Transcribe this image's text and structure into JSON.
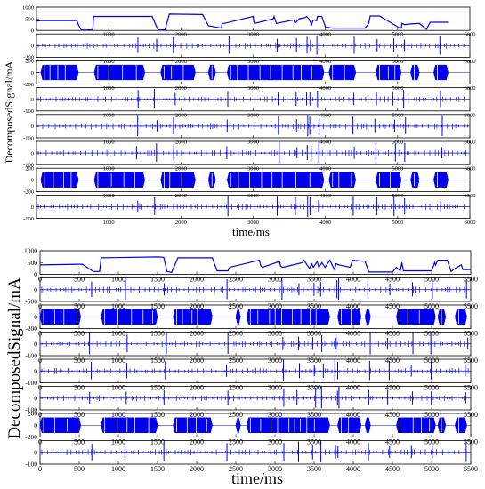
{
  "colors": {
    "signal": "#0000ee",
    "axis": "#000000"
  },
  "chart_data": [
    {
      "type": "line",
      "xlabel": "time/ms",
      "ylabel": "DecomposedSignal/mA",
      "xlim": [
        0,
        6000
      ],
      "x_ticks": [
        "1000",
        "2000",
        "3000",
        "4000",
        "5000",
        "6000"
      ],
      "rows": [
        {
          "ylim": [
            0,
            1000
          ],
          "y_ticks": [
            "1000",
            "500",
            "0"
          ],
          "series": {
            "x": [
              0,
              70,
              560,
              580,
              620,
              700,
              780,
              790,
              1600,
              1680,
              1700,
              1720,
              1780,
              1840,
              2300,
              2380,
              2560,
              2570,
              2600,
              3000,
              3010,
              3020,
              3280,
              3290,
              3320,
              3560,
              3580,
              3640,
              3720,
              3740,
              3770,
              3810,
              3830,
              3880,
              3890,
              3950,
              4000,
              4100,
              4150,
              4200,
              4550,
              4600,
              4620,
              4700,
              4750,
              5020,
              5050,
              5060,
              5100,
              5180,
              5300,
              5400,
              5450,
              5700
            ],
            "y": [
              400,
              420,
              420,
              250,
              20,
              20,
              30,
              600,
              600,
              30,
              20,
              20,
              30,
              700,
              680,
              200,
              100,
              300,
              300,
              600,
              350,
              300,
              500,
              600,
              300,
              450,
              300,
              500,
              550,
              600,
              500,
              250,
              450,
              420,
              600,
              600,
              150,
              100,
              100,
              100,
              100,
              300,
              620,
              620,
              620,
              120,
              100,
              300,
              250,
              280,
              300,
              50,
              350,
              350
            ]
          }
        },
        {
          "ylim": [
            -200,
            200
          ],
          "y_ticks": [
            "0",
            "-200"
          ],
          "kind": "sparse"
        },
        {
          "ylim": [
            -200,
            200
          ],
          "y_ticks": [
            "200",
            "0",
            "-200"
          ],
          "kind": "dense"
        },
        {
          "ylim": [
            -100,
            100
          ],
          "y_ticks": [
            "0",
            "-100"
          ],
          "kind": "sparse"
        },
        {
          "ylim": [
            -100,
            100
          ],
          "y_ticks": [
            "0",
            "-100"
          ],
          "kind": "sparse"
        },
        {
          "ylim": [
            -100,
            100
          ],
          "y_ticks": [
            "0",
            "-100"
          ],
          "kind": "sparse"
        },
        {
          "ylim": [
            -200,
            200
          ],
          "y_ticks": [
            "200",
            "0",
            "-200"
          ],
          "kind": "dense"
        },
        {
          "ylim": [
            -100,
            100
          ],
          "y_ticks": [
            "0",
            "-100"
          ],
          "kind": "sparse"
        }
      ],
      "dense_segments": [
        [
          60,
          580
        ],
        [
          800,
          1500
        ],
        [
          1720,
          2200
        ],
        [
          2380,
          2480
        ],
        [
          2640,
          3980
        ],
        [
          4050,
          4420
        ],
        [
          4700,
          5050
        ],
        [
          5180,
          5300
        ],
        [
          5500,
          5700
        ]
      ],
      "spikes": [
        1400,
        1650,
        1900,
        2650,
        3350,
        3600,
        3750,
        3800,
        3900,
        4400,
        4700,
        4950,
        5100,
        5600
      ]
    },
    {
      "type": "line",
      "xlabel": "time/ms",
      "ylabel": "DecomposedSignal/mA",
      "xlim": [
        0,
        5500
      ],
      "x_ticks": [
        "0",
        "500",
        "1000",
        "1500",
        "2000",
        "2500",
        "3000",
        "3500",
        "4000",
        "4500",
        "5000",
        "5500"
      ],
      "rows": [
        {
          "ylim": [
            0,
            1000
          ],
          "y_ticks": [
            "1000",
            "500",
            "0"
          ],
          "series": {
            "x": [
              0,
              500,
              540,
              600,
              680,
              760,
              780,
              1520,
              1580,
              1620,
              1680,
              1760,
              2200,
              2260,
              2400,
              2420,
              2800,
              2820,
              2840,
              3060,
              3070,
              3100,
              3350,
              3370,
              3440,
              3470,
              3490,
              3540,
              3560,
              3600,
              3640,
              3700,
              3760,
              3780,
              3820,
              3960,
              3990,
              4150,
              4200,
              4500,
              4550,
              4600,
              4620,
              4640,
              5000,
              5040,
              5050,
              5080,
              5200,
              5250,
              5300,
              5380,
              5400,
              5500
            ],
            "y": [
              400,
              430,
              430,
              300,
              120,
              120,
              700,
              740,
              720,
              120,
              80,
              700,
              700,
              150,
              150,
              300,
              600,
              350,
              300,
              550,
              350,
              300,
              500,
              600,
              250,
              450,
              300,
              550,
              300,
              500,
              300,
              600,
              200,
              450,
              400,
              300,
              600,
              550,
              100,
              100,
              300,
              150,
              500,
              150,
              150,
              500,
              400,
              600,
              600,
              120,
              250,
              400,
              200,
              200
            ]
          }
        },
        {
          "ylim": [
            -500,
            500
          ],
          "y_ticks": [
            "0",
            "-500"
          ],
          "kind": "sparse"
        },
        {
          "ylim": [
            -200,
            200
          ],
          "y_ticks": [
            "0",
            "-200"
          ],
          "kind": "dense"
        },
        {
          "ylim": [
            -100,
            100
          ],
          "y_ticks": [
            "0",
            "-100"
          ],
          "kind": "sparse"
        },
        {
          "ylim": [
            -100,
            100
          ],
          "y_ticks": [
            "0",
            "-100"
          ],
          "kind": "sparse"
        },
        {
          "ylim": [
            -100,
            100
          ],
          "y_ticks": [
            "0",
            "-100"
          ],
          "kind": "sparse"
        },
        {
          "ylim": [
            -200,
            200
          ],
          "y_ticks": [
            "200",
            "0",
            "-200"
          ],
          "kind": "dense"
        },
        {
          "ylim": [
            -100,
            100
          ],
          "y_ticks": [
            "0",
            "-100"
          ],
          "kind": "sparse"
        }
      ],
      "dense_segments": [
        [
          0,
          520
        ],
        [
          780,
          1500
        ],
        [
          1700,
          2200
        ],
        [
          2500,
          2560
        ],
        [
          2640,
          3700
        ],
        [
          3800,
          4100
        ],
        [
          4150,
          4220
        ],
        [
          4550,
          5050
        ],
        [
          5080,
          5180
        ],
        [
          5300,
          5450
        ]
      ],
      "spikes": [
        650,
        1100,
        1600,
        2400,
        3100,
        3300,
        3500,
        3600,
        3780,
        3800,
        4200,
        4450,
        4750,
        5000,
        5450
      ]
    }
  ]
}
